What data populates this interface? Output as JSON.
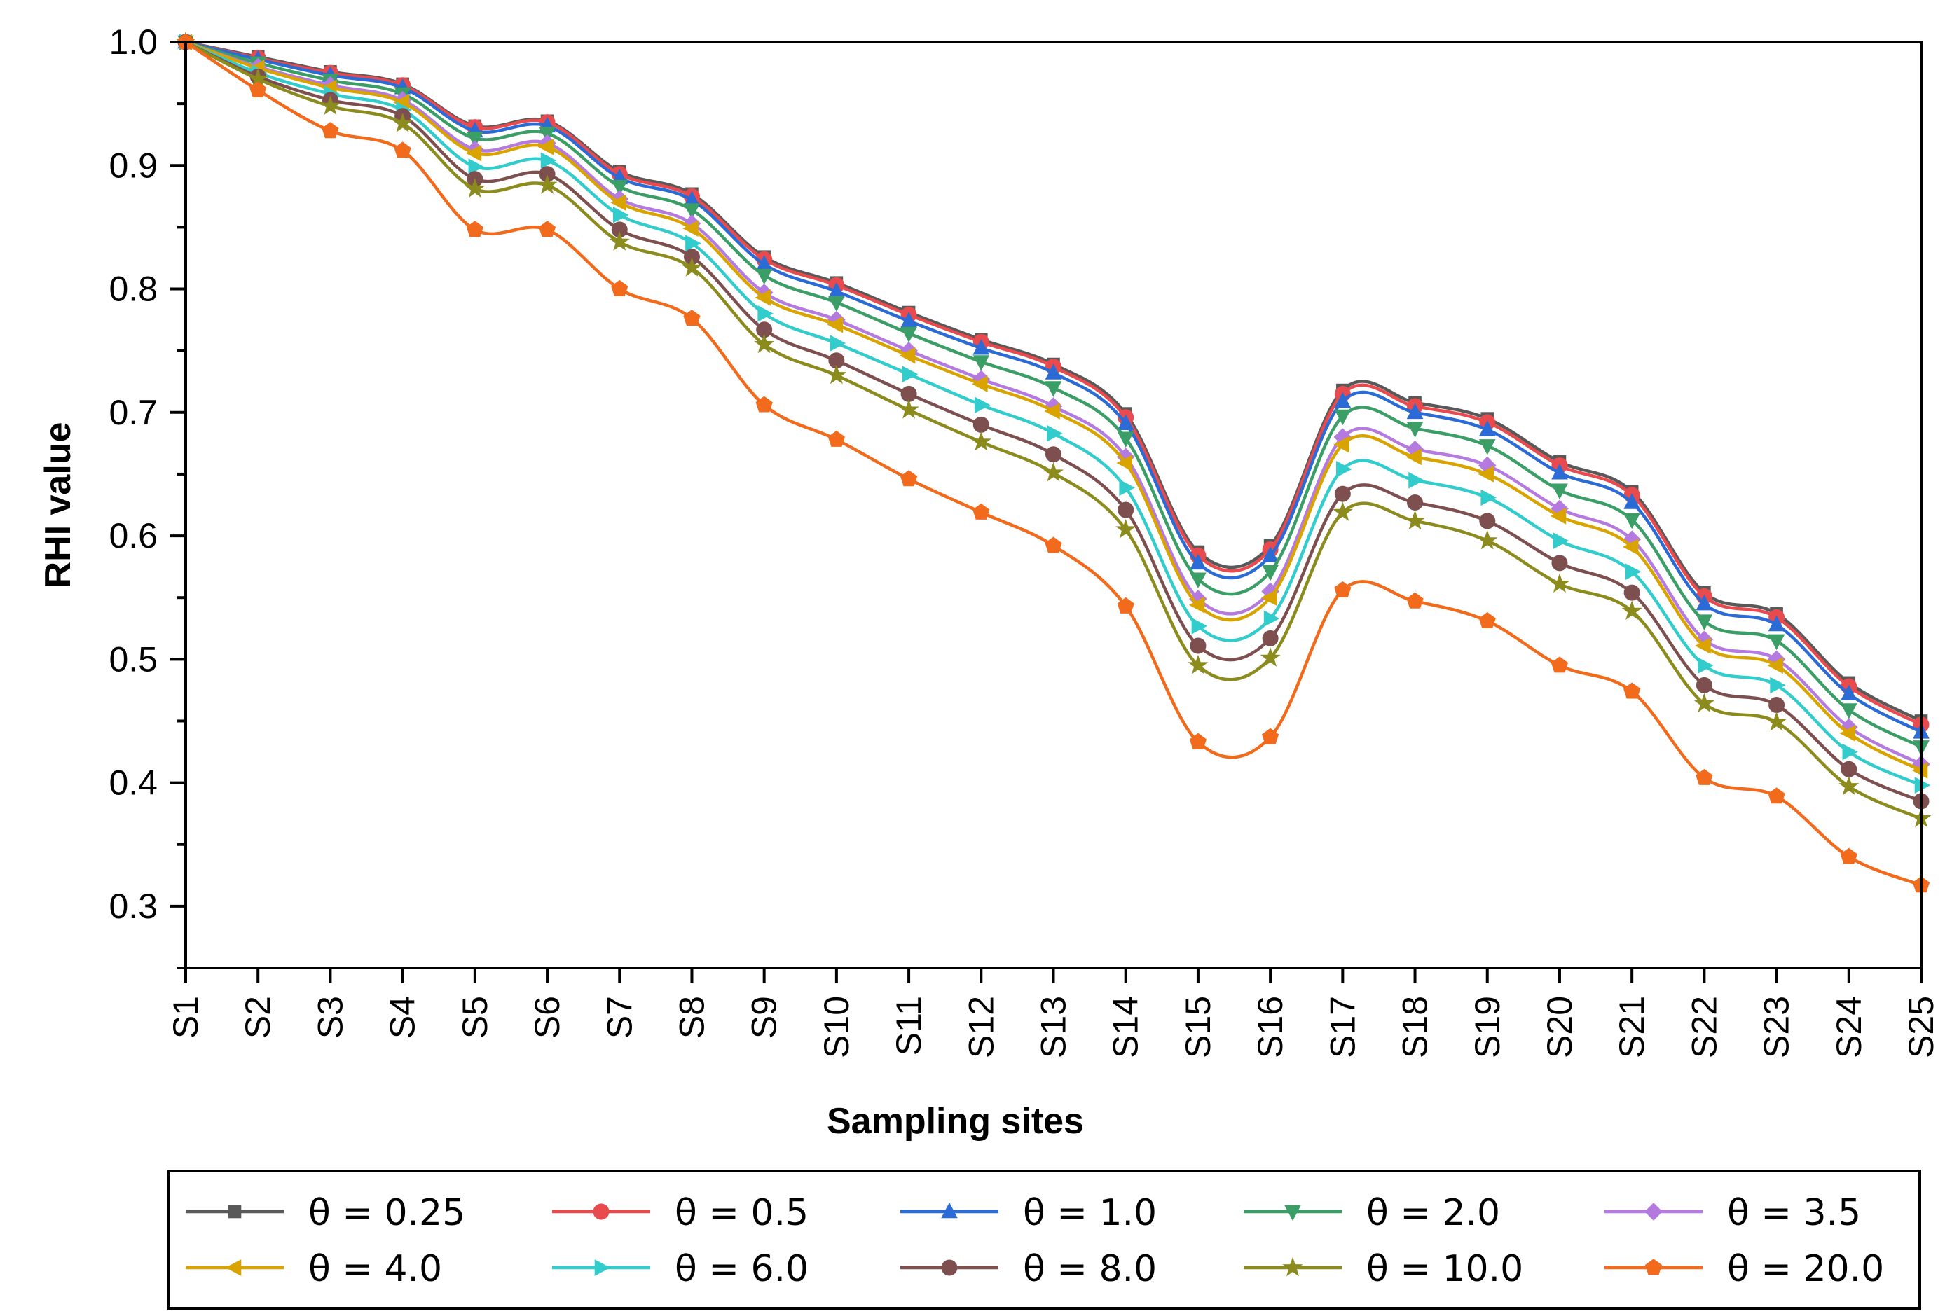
{
  "chart_data": {
    "type": "line",
    "title": "",
    "xlabel": "Sampling sites",
    "ylabel": "RHI value",
    "ylim": [
      0.25,
      1.0
    ],
    "yticks": [
      0.3,
      0.4,
      0.5,
      0.6,
      0.7,
      0.8,
      0.9,
      1.0
    ],
    "ytick_labels": [
      "0.3",
      "0.4",
      "0.5",
      "0.6",
      "0.7",
      "0.8",
      "0.9",
      "1.0"
    ],
    "grid": false,
    "legend_position": "bottom",
    "categories": [
      "S1",
      "S2",
      "S3",
      "S4",
      "S5",
      "S6",
      "S7",
      "S8",
      "S9",
      "S10",
      "S11",
      "S12",
      "S13",
      "S14",
      "S15",
      "S16",
      "S17",
      "S18",
      "S19",
      "S20",
      "S21",
      "S22",
      "S23",
      "S24",
      "S25"
    ],
    "series": [
      {
        "name": "θ = 0.25",
        "color": "#595959",
        "marker": "square",
        "values": [
          1.0,
          0.988,
          0.976,
          0.966,
          0.932,
          0.936,
          0.895,
          0.877,
          0.826,
          0.805,
          0.781,
          0.759,
          0.739,
          0.699,
          0.587,
          0.592,
          0.718,
          0.708,
          0.695,
          0.66,
          0.636,
          0.554,
          0.537,
          0.481,
          0.45
        ]
      },
      {
        "name": "θ = 0.5",
        "color": "#e84a4e",
        "marker": "circle",
        "values": [
          1.0,
          0.987,
          0.975,
          0.965,
          0.931,
          0.935,
          0.893,
          0.875,
          0.824,
          0.803,
          0.779,
          0.757,
          0.737,
          0.696,
          0.584,
          0.589,
          0.715,
          0.705,
          0.692,
          0.657,
          0.633,
          0.551,
          0.534,
          0.478,
          0.447
        ]
      },
      {
        "name": "θ = 1.0",
        "color": "#2b6bd6",
        "marker": "triangle-up",
        "values": [
          1.0,
          0.986,
          0.973,
          0.963,
          0.928,
          0.932,
          0.89,
          0.872,
          0.82,
          0.798,
          0.774,
          0.752,
          0.732,
          0.691,
          0.578,
          0.584,
          0.709,
          0.7,
          0.686,
          0.651,
          0.627,
          0.545,
          0.528,
          0.472,
          0.441
        ]
      },
      {
        "name": "θ = 2.0",
        "color": "#3a9e66",
        "marker": "triangle-down",
        "values": [
          1.0,
          0.983,
          0.969,
          0.958,
          0.922,
          0.926,
          0.883,
          0.864,
          0.811,
          0.789,
          0.764,
          0.741,
          0.72,
          0.679,
          0.565,
          0.571,
          0.697,
          0.687,
          0.673,
          0.637,
          0.613,
          0.531,
          0.515,
          0.459,
          0.429
        ]
      },
      {
        "name": "θ = 3.5",
        "color": "#b57ae0",
        "marker": "diamond",
        "values": [
          1.0,
          0.98,
          0.965,
          0.953,
          0.913,
          0.918,
          0.873,
          0.853,
          0.797,
          0.775,
          0.75,
          0.727,
          0.705,
          0.664,
          0.549,
          0.555,
          0.68,
          0.67,
          0.657,
          0.622,
          0.597,
          0.516,
          0.5,
          0.445,
          0.415
        ]
      },
      {
        "name": "θ = 4.0",
        "color": "#d9a400",
        "marker": "triangle-left",
        "values": [
          1.0,
          0.979,
          0.963,
          0.951,
          0.91,
          0.915,
          0.87,
          0.849,
          0.793,
          0.771,
          0.746,
          0.723,
          0.701,
          0.659,
          0.544,
          0.55,
          0.674,
          0.664,
          0.65,
          0.616,
          0.591,
          0.511,
          0.495,
          0.44,
          0.41
        ]
      },
      {
        "name": "θ = 6.0",
        "color": "#33cccc",
        "marker": "triangle-right",
        "values": [
          1.0,
          0.975,
          0.958,
          0.945,
          0.899,
          0.904,
          0.86,
          0.837,
          0.78,
          0.756,
          0.731,
          0.706,
          0.683,
          0.639,
          0.527,
          0.533,
          0.654,
          0.645,
          0.631,
          0.596,
          0.571,
          0.495,
          0.479,
          0.425,
          0.398
        ]
      },
      {
        "name": "θ = 8.0",
        "color": "#7e4f4f",
        "marker": "circle",
        "values": [
          1.0,
          0.972,
          0.953,
          0.94,
          0.889,
          0.893,
          0.848,
          0.826,
          0.767,
          0.742,
          0.715,
          0.69,
          0.666,
          0.621,
          0.511,
          0.517,
          0.634,
          0.627,
          0.612,
          0.578,
          0.554,
          0.479,
          0.463,
          0.411,
          0.385
        ]
      },
      {
        "name": "θ = 10.0",
        "color": "#8b8b1e",
        "marker": "star",
        "values": [
          1.0,
          0.97,
          0.948,
          0.934,
          0.881,
          0.884,
          0.838,
          0.817,
          0.755,
          0.73,
          0.702,
          0.676,
          0.651,
          0.605,
          0.495,
          0.501,
          0.619,
          0.612,
          0.596,
          0.561,
          0.539,
          0.464,
          0.449,
          0.397,
          0.371
        ]
      },
      {
        "name": "θ = 20.0",
        "color": "#f26b1d",
        "marker": "pentagon",
        "values": [
          1.0,
          0.961,
          0.928,
          0.912,
          0.848,
          0.848,
          0.8,
          0.776,
          0.706,
          0.678,
          0.646,
          0.619,
          0.592,
          0.543,
          0.433,
          0.437,
          0.556,
          0.547,
          0.531,
          0.495,
          0.474,
          0.404,
          0.389,
          0.34,
          0.317
        ]
      }
    ]
  }
}
